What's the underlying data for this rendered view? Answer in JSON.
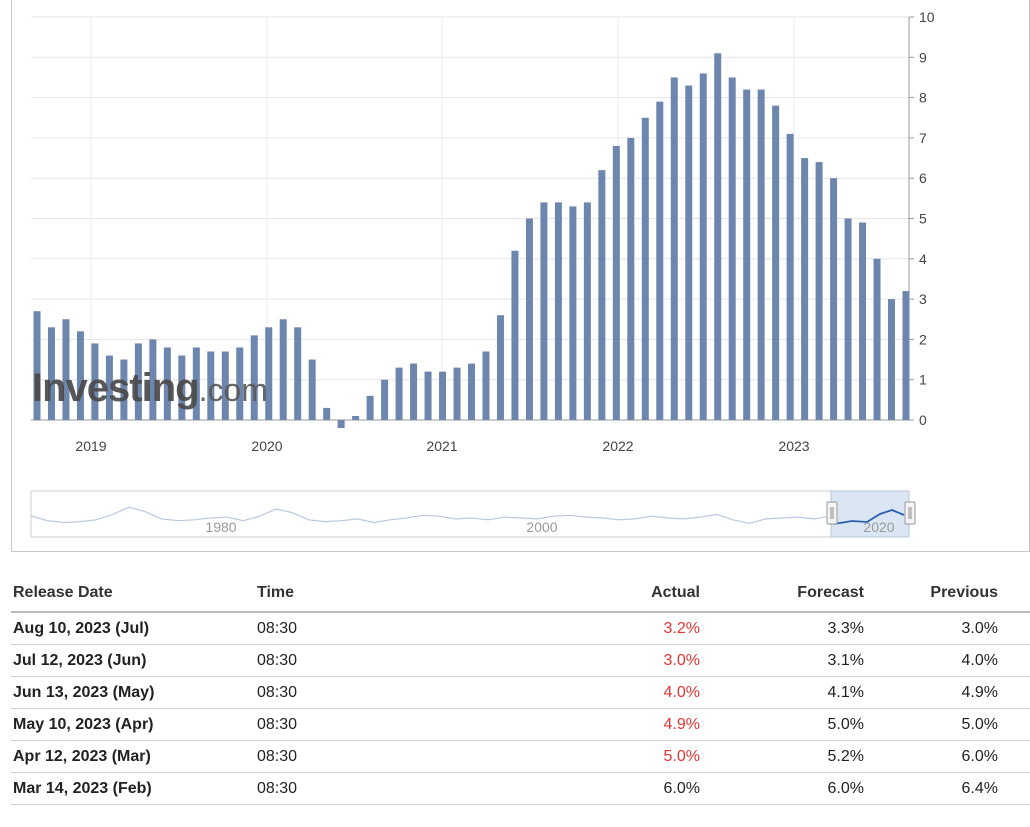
{
  "chart_data": {
    "type": "bar",
    "yaxis": {
      "min": 0,
      "max": 10,
      "ticks": [
        "0",
        "1",
        "2",
        "3",
        "4",
        "5",
        "6",
        "7",
        "8",
        "9",
        "10"
      ]
    },
    "xaxis": {
      "ticks": [
        "2019",
        "2020",
        "2021",
        "2022",
        "2023"
      ]
    },
    "values": [
      2.7,
      2.3,
      2.5,
      2.2,
      1.9,
      1.6,
      1.5,
      1.9,
      2.0,
      1.8,
      1.6,
      1.8,
      1.7,
      1.7,
      1.8,
      2.1,
      2.3,
      2.5,
      2.3,
      1.5,
      0.3,
      -0.2,
      0.1,
      0.6,
      1.0,
      1.3,
      1.4,
      1.2,
      1.2,
      1.3,
      1.4,
      1.7,
      2.6,
      4.2,
      5.0,
      5.4,
      5.4,
      5.3,
      5.4,
      6.2,
      6.8,
      7.0,
      7.5,
      7.9,
      8.5,
      8.3,
      8.6,
      9.1,
      8.5,
      8.2,
      8.2,
      7.8,
      7.1,
      6.5,
      6.4,
      6.0,
      5.0,
      4.9,
      4.0,
      3.0,
      3.2
    ],
    "grid": true,
    "bar_color": "#6c86ad",
    "navigator": {
      "labels": [
        "1980",
        "2000",
        "2020"
      ]
    }
  },
  "logo": {
    "main": "Investing",
    "suffix": ".com"
  },
  "table": {
    "headers": {
      "date": "Release Date",
      "time": "Time",
      "actual": "Actual",
      "forecast": "Forecast",
      "previous": "Previous"
    },
    "rows": [
      {
        "date": "Aug 10, 2023 (Jul)",
        "time": "08:30",
        "actual": "3.2%",
        "forecast": "3.3%",
        "previous": "3.0%",
        "actual_color": "#e53333"
      },
      {
        "date": "Jul 12, 2023 (Jun)",
        "time": "08:30",
        "actual": "3.0%",
        "forecast": "3.1%",
        "previous": "4.0%",
        "actual_color": "#e53333"
      },
      {
        "date": "Jun 13, 2023 (May)",
        "time": "08:30",
        "actual": "4.0%",
        "forecast": "4.1%",
        "previous": "4.9%",
        "actual_color": "#e53333"
      },
      {
        "date": "May 10, 2023 (Apr)",
        "time": "08:30",
        "actual": "4.9%",
        "forecast": "5.0%",
        "previous": "5.0%",
        "actual_color": "#e53333"
      },
      {
        "date": "Apr 12, 2023 (Mar)",
        "time": "08:30",
        "actual": "5.0%",
        "forecast": "5.2%",
        "previous": "6.0%",
        "actual_color": "#e53333"
      },
      {
        "date": "Mar 14, 2023 (Feb)",
        "time": "08:30",
        "actual": "6.0%",
        "forecast": "6.0%",
        "previous": "6.4%",
        "actual_color": "#222222"
      }
    ]
  }
}
